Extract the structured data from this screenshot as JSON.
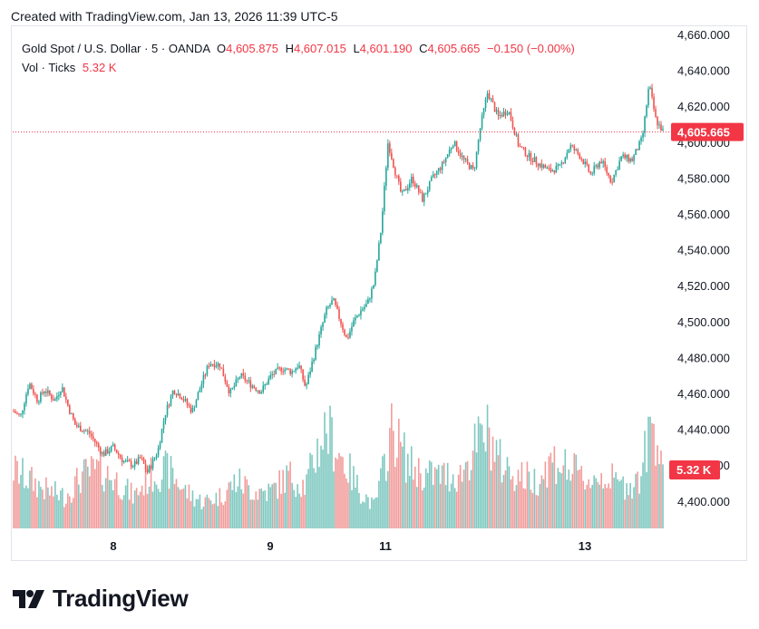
{
  "header": {
    "caption": "Created with TradingView.com, Jan 13, 2026 11:39 UTC-5"
  },
  "legend": {
    "symbol": "Gold Spot / U.S. Dollar · 5 · OANDA",
    "open_label": "O",
    "open": "4,605.875",
    "high_label": "H",
    "high": "4,607.015",
    "low_label": "L",
    "low": "4,601.190",
    "close_label": "C",
    "close": "4,605.665",
    "change": "−0.150 (−0.00%)",
    "volume_label": "Vol · Ticks",
    "volume": "5.32 K"
  },
  "colors": {
    "up": "#26a69a",
    "down": "#ef5350",
    "up_volume": "#7fc8c0",
    "down_volume": "#f29c9b",
    "price_tag": "#f23645",
    "text": "#131722"
  },
  "chart_data": {
    "type": "candlestick",
    "title": "Gold Spot / U.S. Dollar · 5 · OANDA",
    "ylim": [
      4380,
      4665
    ],
    "y_ticks": [
      "4,400.000",
      "4,420.000",
      "4,440.000",
      "4,460.000",
      "4,480.000",
      "4,500.000",
      "4,520.000",
      "4,540.000",
      "4,560.000",
      "4,580.000",
      "4,600.000",
      "4,620.000",
      "4,640.000",
      "4,660.000"
    ],
    "x_ticks": [
      "8",
      "9",
      "11",
      "13"
    ],
    "last_price": 4605.665,
    "last_price_label": "4,605.665",
    "volume_label": "5.32 K",
    "grid": false,
    "price_path": [
      {
        "x": 0,
        "y": 4450
      },
      {
        "x": 4,
        "y": 4447
      },
      {
        "x": 9,
        "y": 4466
      },
      {
        "x": 14,
        "y": 4456
      },
      {
        "x": 18,
        "y": 4462
      },
      {
        "x": 24,
        "y": 4456
      },
      {
        "x": 28,
        "y": 4464
      },
      {
        "x": 32,
        "y": 4452
      },
      {
        "x": 36,
        "y": 4442
      },
      {
        "x": 44,
        "y": 4438
      },
      {
        "x": 52,
        "y": 4426
      },
      {
        "x": 58,
        "y": 4430
      },
      {
        "x": 64,
        "y": 4422
      },
      {
        "x": 70,
        "y": 4420
      },
      {
        "x": 74,
        "y": 4424
      },
      {
        "x": 78,
        "y": 4416
      },
      {
        "x": 84,
        "y": 4428
      },
      {
        "x": 88,
        "y": 4448
      },
      {
        "x": 93,
        "y": 4462
      },
      {
        "x": 98,
        "y": 4458
      },
      {
        "x": 104,
        "y": 4450
      },
      {
        "x": 110,
        "y": 4467
      },
      {
        "x": 114,
        "y": 4477
      },
      {
        "x": 120,
        "y": 4476
      },
      {
        "x": 126,
        "y": 4460
      },
      {
        "x": 132,
        "y": 4470
      },
      {
        "x": 138,
        "y": 4465
      },
      {
        "x": 144,
        "y": 4461
      },
      {
        "x": 150,
        "y": 4470
      },
      {
        "x": 156,
        "y": 4474
      },
      {
        "x": 162,
        "y": 4472
      },
      {
        "x": 166,
        "y": 4476
      },
      {
        "x": 170,
        "y": 4463
      },
      {
        "x": 174,
        "y": 4478
      },
      {
        "x": 178,
        "y": 4492
      },
      {
        "x": 182,
        "y": 4506
      },
      {
        "x": 186,
        "y": 4512
      },
      {
        "x": 190,
        "y": 4501
      },
      {
        "x": 194,
        "y": 4490
      },
      {
        "x": 198,
        "y": 4500
      },
      {
        "x": 202,
        "y": 4506
      },
      {
        "x": 206,
        "y": 4510
      },
      {
        "x": 210,
        "y": 4522
      },
      {
        "x": 214,
        "y": 4552
      },
      {
        "x": 218,
        "y": 4600
      },
      {
        "x": 222,
        "y": 4584
      },
      {
        "x": 226,
        "y": 4570
      },
      {
        "x": 232,
        "y": 4580
      },
      {
        "x": 238,
        "y": 4568
      },
      {
        "x": 244,
        "y": 4580
      },
      {
        "x": 250,
        "y": 4588
      },
      {
        "x": 256,
        "y": 4600
      },
      {
        "x": 262,
        "y": 4590
      },
      {
        "x": 268,
        "y": 4584
      },
      {
        "x": 272,
        "y": 4610
      },
      {
        "x": 276,
        "y": 4628
      },
      {
        "x": 282,
        "y": 4614
      },
      {
        "x": 288,
        "y": 4618
      },
      {
        "x": 294,
        "y": 4598
      },
      {
        "x": 300,
        "y": 4592
      },
      {
        "x": 306,
        "y": 4588
      },
      {
        "x": 312,
        "y": 4584
      },
      {
        "x": 318,
        "y": 4586
      },
      {
        "x": 324,
        "y": 4598
      },
      {
        "x": 330,
        "y": 4592
      },
      {
        "x": 336,
        "y": 4582
      },
      {
        "x": 342,
        "y": 4590
      },
      {
        "x": 348,
        "y": 4578
      },
      {
        "x": 354,
        "y": 4592
      },
      {
        "x": 360,
        "y": 4590
      },
      {
        "x": 366,
        "y": 4602
      },
      {
        "x": 370,
        "y": 4632
      },
      {
        "x": 374,
        "y": 4612
      },
      {
        "x": 378,
        "y": 4606
      }
    ],
    "volume_path": [
      {
        "x": 0,
        "v": 0.55
      },
      {
        "x": 10,
        "v": 0.45
      },
      {
        "x": 20,
        "v": 0.35
      },
      {
        "x": 30,
        "v": 0.3
      },
      {
        "x": 40,
        "v": 0.5
      },
      {
        "x": 50,
        "v": 0.55
      },
      {
        "x": 60,
        "v": 0.45
      },
      {
        "x": 70,
        "v": 0.3
      },
      {
        "x": 80,
        "v": 0.5
      },
      {
        "x": 90,
        "v": 0.55
      },
      {
        "x": 100,
        "v": 0.35
      },
      {
        "x": 110,
        "v": 0.25
      },
      {
        "x": 120,
        "v": 0.3
      },
      {
        "x": 130,
        "v": 0.45
      },
      {
        "x": 140,
        "v": 0.35
      },
      {
        "x": 150,
        "v": 0.35
      },
      {
        "x": 160,
        "v": 0.5
      },
      {
        "x": 170,
        "v": 0.4
      },
      {
        "x": 176,
        "v": 0.7
      },
      {
        "x": 182,
        "v": 0.95
      },
      {
        "x": 190,
        "v": 0.7
      },
      {
        "x": 200,
        "v": 0.4
      },
      {
        "x": 210,
        "v": 0.2
      },
      {
        "x": 216,
        "v": 0.6
      },
      {
        "x": 220,
        "v": 0.95
      },
      {
        "x": 230,
        "v": 0.6
      },
      {
        "x": 240,
        "v": 0.5
      },
      {
        "x": 250,
        "v": 0.5
      },
      {
        "x": 260,
        "v": 0.5
      },
      {
        "x": 270,
        "v": 0.8
      },
      {
        "x": 276,
        "v": 0.9
      },
      {
        "x": 284,
        "v": 0.6
      },
      {
        "x": 294,
        "v": 0.5
      },
      {
        "x": 304,
        "v": 0.45
      },
      {
        "x": 314,
        "v": 0.65
      },
      {
        "x": 324,
        "v": 0.55
      },
      {
        "x": 334,
        "v": 0.45
      },
      {
        "x": 344,
        "v": 0.5
      },
      {
        "x": 354,
        "v": 0.4
      },
      {
        "x": 364,
        "v": 0.45
      },
      {
        "x": 372,
        "v": 1.0
      },
      {
        "x": 378,
        "v": 0.7
      }
    ]
  },
  "branding": {
    "logo_text": "TradingView"
  }
}
